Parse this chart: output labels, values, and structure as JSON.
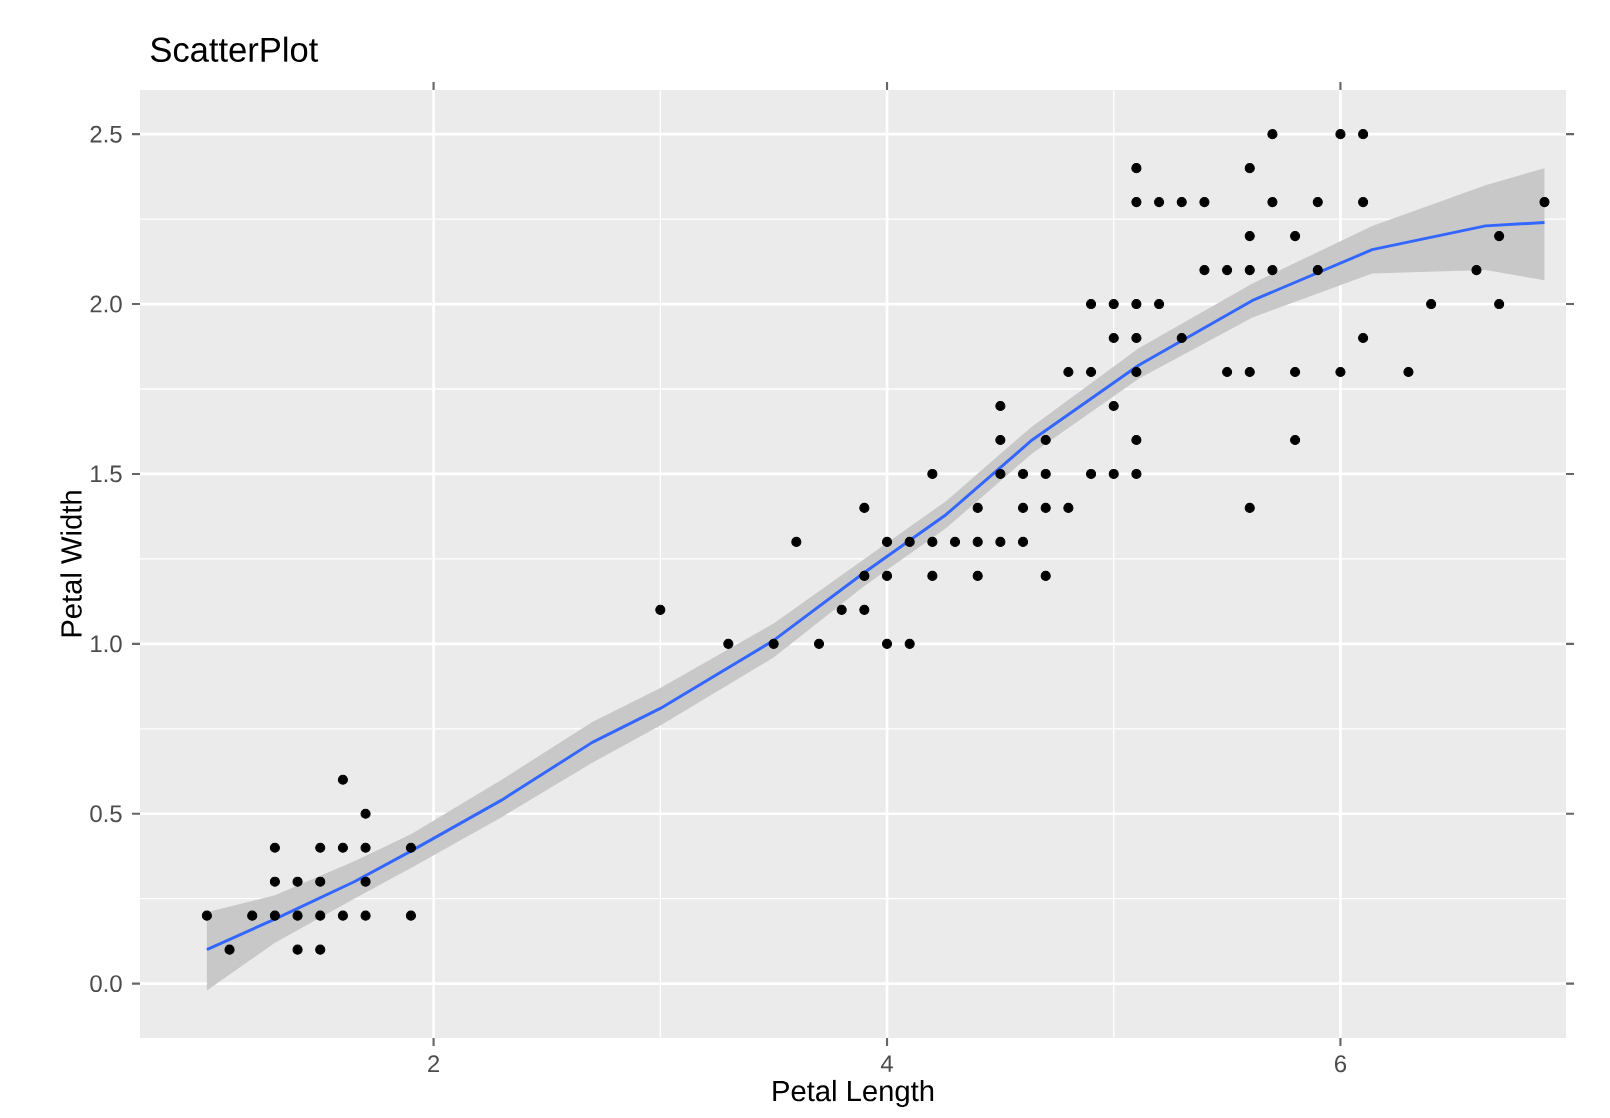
{
  "chart_data": {
    "type": "scatter",
    "title": "ScatterPlot",
    "xlabel": "Petal Length",
    "ylabel": "Petal Width",
    "xlim": [
      0.705,
      6.995
    ],
    "ylim": [
      -0.16,
      2.63
    ],
    "xticks": [
      2,
      4,
      6
    ],
    "yticks": [
      {
        "value": 0,
        "label": "0.0"
      },
      0.5,
      {
        "value": 1,
        "label": "1.0"
      },
      1.5,
      {
        "value": 2,
        "label": "2.0"
      },
      2.5
    ],
    "grid": true,
    "series": [
      {
        "marker": "circle",
        "color": "#000000",
        "x": [
          1.1,
          1.4,
          1.5,
          1.0,
          1.2,
          1.3,
          1.4,
          1.5,
          1.6,
          1.7,
          1.9,
          1.3,
          1.4,
          1.5,
          1.7,
          1.3,
          1.5,
          1.6,
          1.7,
          1.9,
          1.7,
          1.6,
          3.3,
          3.5,
          3.7,
          4.0,
          4.1,
          3.0,
          3.8,
          3.9,
          3.9,
          4.0,
          4.2,
          4.4,
          4.7,
          3.6,
          4.0,
          4.1,
          4.2,
          4.3,
          4.4,
          4.5,
          4.6,
          3.9,
          4.4,
          4.6,
          4.7,
          4.8,
          5.6,
          4.2,
          4.5,
          4.6,
          4.7,
          4.9,
          5.0,
          5.1,
          4.5,
          4.7,
          5.1,
          5.8,
          4.5,
          5.0,
          4.8,
          4.9,
          5.1,
          5.5,
          5.6,
          5.8,
          6.0,
          6.3,
          5.0,
          5.1,
          5.3,
          6.1,
          4.9,
          5.0,
          5.1,
          5.2,
          6.4,
          6.7,
          5.4,
          5.5,
          5.6,
          5.7,
          5.9,
          6.6,
          5.6,
          5.8,
          6.7,
          5.1,
          5.2,
          5.3,
          5.4,
          5.7,
          5.9,
          6.1,
          6.9,
          5.1,
          5.6,
          5.7,
          6.0,
          6.1
        ],
        "values": [
          0.1,
          0.1,
          0.1,
          0.2,
          0.2,
          0.2,
          0.2,
          0.2,
          0.2,
          0.2,
          0.2,
          0.3,
          0.3,
          0.3,
          0.3,
          0.4,
          0.4,
          0.4,
          0.4,
          0.4,
          0.5,
          0.6,
          1.0,
          1.0,
          1.0,
          1.0,
          1.0,
          1.1,
          1.1,
          1.1,
          1.2,
          1.2,
          1.2,
          1.2,
          1.2,
          1.3,
          1.3,
          1.3,
          1.3,
          1.3,
          1.3,
          1.3,
          1.3,
          1.4,
          1.4,
          1.4,
          1.4,
          1.4,
          1.4,
          1.5,
          1.5,
          1.5,
          1.5,
          1.5,
          1.5,
          1.5,
          1.6,
          1.6,
          1.6,
          1.6,
          1.7,
          1.7,
          1.8,
          1.8,
          1.8,
          1.8,
          1.8,
          1.8,
          1.8,
          1.8,
          1.9,
          1.9,
          1.9,
          1.9,
          2.0,
          2.0,
          2.0,
          2.0,
          2.0,
          2.0,
          2.1,
          2.1,
          2.1,
          2.1,
          2.1,
          2.1,
          2.2,
          2.2,
          2.2,
          2.3,
          2.3,
          2.3,
          2.3,
          2.3,
          2.3,
          2.3,
          2.3,
          2.4,
          2.4,
          2.5,
          2.5,
          2.5
        ]
      },
      {
        "type": "line",
        "marker": "none",
        "color": "#3366ff",
        "x": [
          1.0,
          1.3,
          1.65,
          1.9,
          2.3,
          2.7,
          3.0,
          3.5,
          3.9,
          4.26,
          4.64,
          5.11,
          5.61,
          6.14,
          6.64,
          6.9
        ],
        "values": [
          0.1,
          0.19,
          0.3,
          0.39,
          0.54,
          0.71,
          0.81,
          1.01,
          1.21,
          1.38,
          1.6,
          1.82,
          2.01,
          2.16,
          2.23,
          2.24
        ],
        "lower": [
          -0.02,
          0.12,
          0.25,
          0.34,
          0.49,
          0.65,
          0.76,
          0.96,
          1.17,
          1.34,
          1.56,
          1.78,
          1.96,
          2.09,
          2.1,
          2.07
        ],
        "upper": [
          0.21,
          0.26,
          0.36,
          0.44,
          0.6,
          0.77,
          0.87,
          1.06,
          1.25,
          1.42,
          1.64,
          1.87,
          2.06,
          2.23,
          2.35,
          2.4
        ]
      }
    ]
  }
}
